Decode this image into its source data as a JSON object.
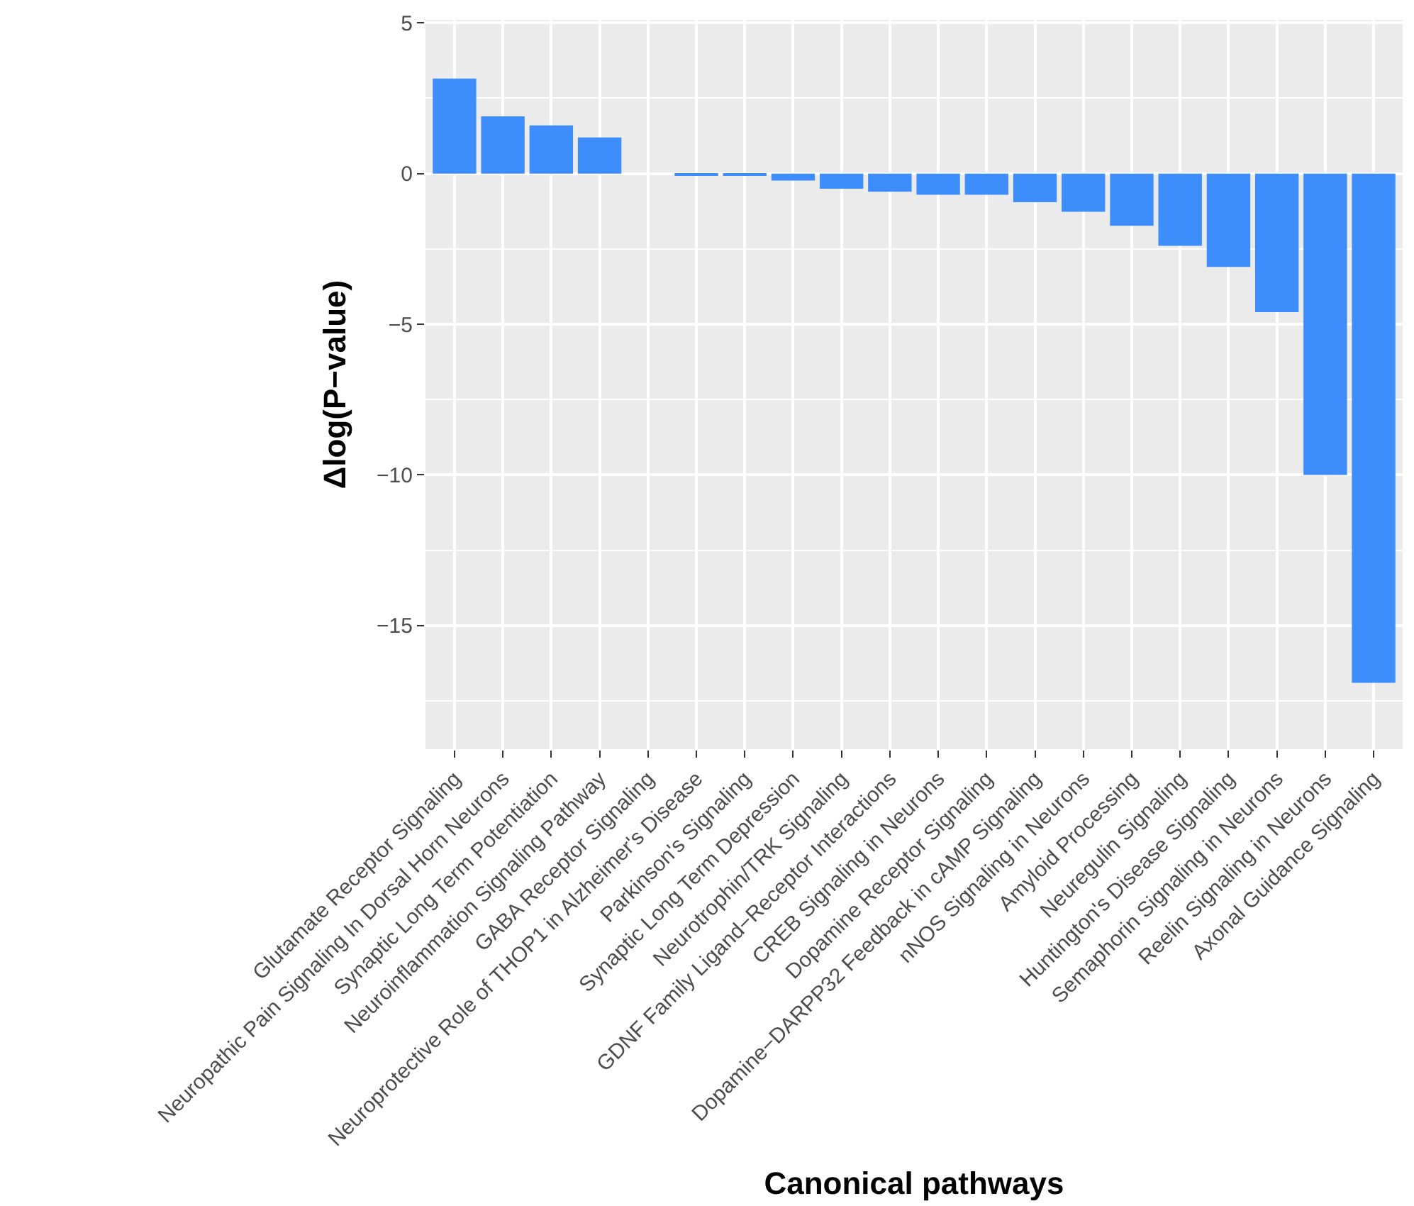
{
  "chart_data": {
    "type": "bar",
    "xlabel": "Canonical pathways",
    "ylabel": "Δlog(P−value)",
    "categories": [
      "Glutamate Receptor Signaling",
      "Neuropathic Pain Signaling In Dorsal Horn Neurons",
      "Synaptic Long Term Potentiation",
      "Neuroinflammation Signaling Pathway",
      "GABA Receptor Signaling",
      "Neuroprotective Role of THOP1 in Alzheimer's Disease",
      "Parkinson's Signaling",
      "Synaptic Long Term Depression",
      "Neurotrophin/TRK Signaling",
      "GDNF Family Ligand−Receptor Interactions",
      "CREB Signaling in Neurons",
      "Dopamine Receptor Signaling",
      "Dopamine−DARPP32 Feedback in cAMP Signaling",
      "nNOS Signaling in Neurons",
      "Amyloid Processing",
      "Neuregulin Signaling",
      "Huntington's Disease Signaling",
      "Semaphorin Signaling in Neurons",
      "Reelin Signaling in Neurons",
      "Axonal Guidance Signaling"
    ],
    "values": [
      3.15,
      1.9,
      1.6,
      1.2,
      0.0,
      -0.06,
      -0.06,
      -0.23,
      -0.5,
      -0.6,
      -0.7,
      -0.7,
      -0.95,
      -1.27,
      -1.73,
      -2.4,
      -3.1,
      -4.6,
      -10.0,
      -16.9
    ],
    "color": "#3d8efc",
    "ylim": [
      -19.1,
      5.1
    ],
    "yticks": [
      5,
      0,
      {
        "value": -5,
        "label": "−5"
      },
      {
        "value": -10,
        "label": "−10"
      },
      {
        "value": -15,
        "label": "−15"
      }
    ],
    "grid": true
  }
}
